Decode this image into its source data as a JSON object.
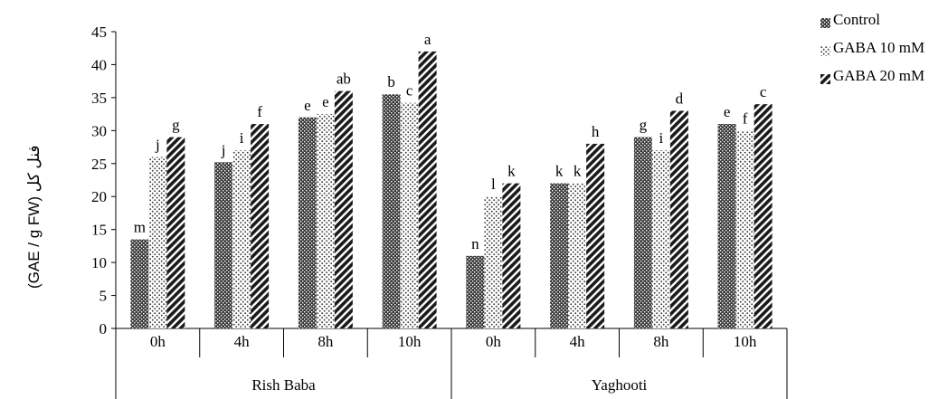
{
  "chart_data": {
    "type": "bar",
    "ylabel": "(GAE / g FW) فنل کل",
    "ylim": [
      0,
      45
    ],
    "yticks": [
      0,
      5,
      10,
      15,
      20,
      25,
      30,
      35,
      40,
      45
    ],
    "groups": [
      {
        "name": "Rish Baba",
        "categories": [
          "0h",
          "4h",
          "8h",
          "10h"
        ]
      },
      {
        "name": "Yaghooti",
        "categories": [
          "0h",
          "4h",
          "8h",
          "10h"
        ]
      }
    ],
    "categories": [
      "0h",
      "4h",
      "8h",
      "10h",
      "0h",
      "4h",
      "8h",
      "10h"
    ],
    "series": [
      {
        "name": "Control",
        "pattern": "dense",
        "values": [
          13.5,
          25.2,
          32.0,
          35.5,
          11.0,
          22.0,
          29.0,
          31.0
        ],
        "labels": [
          "m",
          "j",
          "e",
          "b",
          "n",
          "k",
          "g",
          "e"
        ]
      },
      {
        "name": "GABA 10 mM",
        "pattern": "dots",
        "values": [
          26.0,
          27.0,
          32.5,
          34.2,
          20.0,
          22.0,
          27.0,
          30.0
        ],
        "labels": [
          "j",
          "i",
          "e",
          "c",
          "l",
          "k",
          "i",
          "f"
        ]
      },
      {
        "name": "GABA 20 mM",
        "pattern": "diagonal",
        "values": [
          29.0,
          31.0,
          36.0,
          42.0,
          22.0,
          28.0,
          33.0,
          34.0
        ],
        "labels": [
          "g",
          "f",
          "ab",
          "a",
          "k",
          "h",
          "d",
          "c"
        ]
      }
    ],
    "grid": false,
    "legend": "top-right"
  }
}
